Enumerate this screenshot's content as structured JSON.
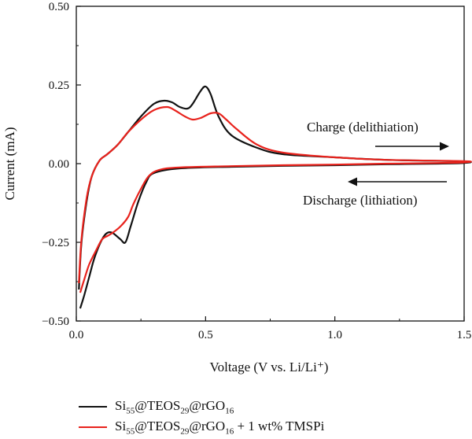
{
  "chart_data": {
    "type": "line",
    "xlabel": "Voltage (V vs. Li/Li⁺)",
    "ylabel": "Current (mA)",
    "xlim": [
      0,
      1.5
    ],
    "ylim": [
      -0.5,
      0.5
    ],
    "xticks": [
      "0.0",
      "0.5",
      "1.0",
      "1.5"
    ],
    "yticks": [
      "−0.50",
      "−0.25",
      "0.00",
      "0.25",
      "0.50"
    ],
    "xtick_values": [
      0,
      0.5,
      1.0,
      1.5
    ],
    "ytick_values": [
      -0.5,
      -0.25,
      0,
      0.25,
      0.5
    ],
    "grid": false,
    "legend_position": "below",
    "annotations": [
      {
        "text": "Charge (delithiation)",
        "arrow": "right"
      },
      {
        "text": "Discharge (lithiation)",
        "arrow": "left"
      }
    ],
    "series": [
      {
        "name_parts": [
          [
            "Si",
            "55"
          ],
          [
            "@TEOS",
            "29"
          ],
          [
            "@rGO",
            "16"
          ]
        ],
        "name_suffix": "",
        "color": "#111111",
        "x": [
          0.01,
          0.02,
          0.04,
          0.06,
          0.09,
          0.12,
          0.16,
          0.2,
          0.25,
          0.3,
          0.34,
          0.37,
          0.4,
          0.43,
          0.45,
          0.48,
          0.5,
          0.52,
          0.55,
          0.6,
          0.7,
          0.8,
          1.0,
          1.2,
          1.5,
          1.5,
          1.4,
          1.2,
          1.0,
          0.8,
          0.6,
          0.4,
          0.3,
          0.27,
          0.24,
          0.21,
          0.19,
          0.17,
          0.14,
          0.12,
          0.1,
          0.07,
          0.05,
          0.03,
          0.015
        ],
        "y": [
          -0.4,
          -0.25,
          -0.12,
          -0.04,
          0.01,
          0.03,
          0.06,
          0.1,
          0.15,
          0.19,
          0.2,
          0.195,
          0.18,
          0.175,
          0.19,
          0.23,
          0.245,
          0.22,
          0.15,
          0.09,
          0.05,
          0.03,
          0.02,
          0.012,
          0.007,
          0.002,
          0.0,
          -0.002,
          -0.005,
          -0.007,
          -0.01,
          -0.015,
          -0.03,
          -0.06,
          -0.12,
          -0.2,
          -0.25,
          -0.24,
          -0.22,
          -0.22,
          -0.24,
          -0.3,
          -0.36,
          -0.42,
          -0.46
        ]
      },
      {
        "name_parts": [
          [
            "Si",
            "55"
          ],
          [
            "@TEOS",
            "29"
          ],
          [
            "@rGO",
            "16"
          ]
        ],
        "name_suffix": " + 1 wt% TMSPi",
        "color": "#e8221c",
        "x": [
          0.01,
          0.02,
          0.04,
          0.06,
          0.09,
          0.12,
          0.16,
          0.2,
          0.25,
          0.3,
          0.35,
          0.38,
          0.42,
          0.45,
          0.48,
          0.52,
          0.55,
          0.58,
          0.62,
          0.7,
          0.8,
          1.0,
          1.2,
          1.5,
          1.5,
          1.4,
          1.2,
          1.0,
          0.8,
          0.6,
          0.4,
          0.32,
          0.28,
          0.25,
          0.22,
          0.2,
          0.17,
          0.14,
          0.12,
          0.1,
          0.08,
          0.05,
          0.03,
          0.015
        ],
        "y": [
          -0.38,
          -0.24,
          -0.11,
          -0.04,
          0.01,
          0.03,
          0.06,
          0.1,
          0.14,
          0.17,
          0.18,
          0.17,
          0.15,
          0.14,
          0.145,
          0.16,
          0.16,
          0.14,
          0.11,
          0.06,
          0.035,
          0.02,
          0.012,
          0.008,
          0.004,
          0.002,
          0.0,
          -0.003,
          -0.005,
          -0.008,
          -0.012,
          -0.02,
          -0.04,
          -0.08,
          -0.13,
          -0.17,
          -0.2,
          -0.22,
          -0.23,
          -0.24,
          -0.27,
          -0.32,
          -0.37,
          -0.41
        ]
      }
    ]
  }
}
